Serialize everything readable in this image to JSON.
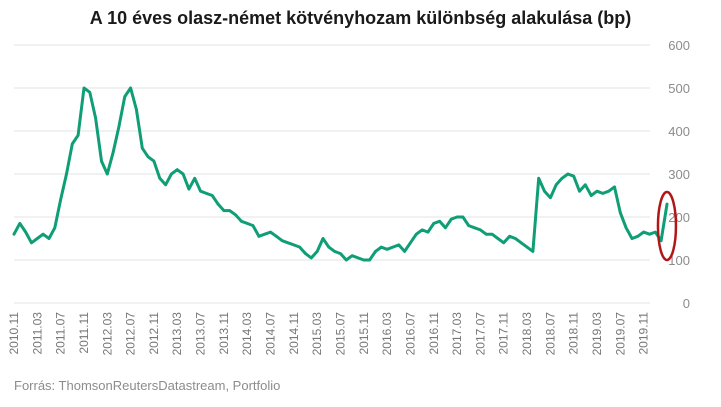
{
  "title": "A 10 éves olasz-német kötvényhozam különbség alakulása (bp)",
  "source": "Forrás: ThomsonReutersDatastream, Portfolio",
  "colors": {
    "series": "#0f9e76",
    "highlight": "#b01818",
    "grid": "#e3e3e3",
    "text": "#8c8c8c"
  },
  "chart_data": {
    "type": "line",
    "title": "A 10 éves olasz-német kötvényhozam különbség alakulása (bp)",
    "xlabel": "",
    "ylabel": "",
    "ylim": [
      0,
      600
    ],
    "y_ticks": [
      "0",
      "100",
      "200",
      "300",
      "400",
      "500",
      "600"
    ],
    "y_axis_position": "right",
    "grid": "horizontal",
    "x_ticks": [
      "2010.11",
      "2011.03",
      "2011.07",
      "2011.11",
      "2012.03",
      "2012.07",
      "2012.11",
      "2013.03",
      "2013.07",
      "2013.11",
      "2014.03",
      "2014.07",
      "2014.11",
      "2015.03",
      "2015.07",
      "2015.11",
      "2016.03",
      "2016.07",
      "2016.11",
      "2017.03",
      "2017.07",
      "2017.11",
      "2018.03",
      "2018.07",
      "2018.11",
      "2019.03",
      "2019.07",
      "2019.11"
    ],
    "series": [
      {
        "x": [
          "2010.11",
          "2010.12",
          "2011.01",
          "2011.02",
          "2011.03",
          "2011.04",
          "2011.05",
          "2011.06",
          "2011.07",
          "2011.08",
          "2011.09",
          "2011.10",
          "2011.11",
          "2011.12",
          "2012.01",
          "2012.02",
          "2012.03",
          "2012.04",
          "2012.05",
          "2012.06",
          "2012.07",
          "2012.08",
          "2012.09",
          "2012.10",
          "2012.11",
          "2012.12",
          "2013.01",
          "2013.02",
          "2013.03",
          "2013.04",
          "2013.05",
          "2013.06",
          "2013.07",
          "2013.08",
          "2013.09",
          "2013.10",
          "2013.11",
          "2013.12",
          "2014.01",
          "2014.02",
          "2014.03",
          "2014.04",
          "2014.05",
          "2014.06",
          "2014.07",
          "2014.08",
          "2014.09",
          "2014.10",
          "2014.11",
          "2014.12",
          "2015.01",
          "2015.02",
          "2015.03",
          "2015.04",
          "2015.05",
          "2015.06",
          "2015.07",
          "2015.08",
          "2015.09",
          "2015.10",
          "2015.11",
          "2015.12",
          "2016.01",
          "2016.02",
          "2016.03",
          "2016.04",
          "2016.05",
          "2016.06",
          "2016.07",
          "2016.08",
          "2016.09",
          "2016.10",
          "2016.11",
          "2016.12",
          "2017.01",
          "2017.02",
          "2017.03",
          "2017.04",
          "2017.05",
          "2017.06",
          "2017.07",
          "2017.08",
          "2017.09",
          "2017.10",
          "2017.11",
          "2017.12",
          "2018.01",
          "2018.02",
          "2018.03",
          "2018.04",
          "2018.05",
          "2018.06",
          "2018.07",
          "2018.08",
          "2018.09",
          "2018.10",
          "2018.11",
          "2018.12",
          "2019.01",
          "2019.02",
          "2019.03",
          "2019.04",
          "2019.05",
          "2019.06",
          "2019.07",
          "2019.08",
          "2019.09",
          "2019.10",
          "2019.11",
          "2019.12",
          "2020.01",
          "2020.02",
          "2020.03"
        ],
        "values": [
          160,
          185,
          165,
          140,
          150,
          160,
          150,
          175,
          240,
          300,
          370,
          390,
          500,
          490,
          430,
          330,
          300,
          350,
          410,
          480,
          500,
          450,
          360,
          340,
          330,
          290,
          275,
          300,
          310,
          300,
          265,
          290,
          260,
          255,
          250,
          230,
          215,
          215,
          205,
          190,
          185,
          180,
          155,
          160,
          165,
          155,
          145,
          140,
          135,
          130,
          115,
          105,
          120,
          150,
          130,
          120,
          115,
          100,
          110,
          105,
          100,
          100,
          120,
          130,
          125,
          130,
          135,
          120,
          140,
          160,
          170,
          165,
          185,
          190,
          175,
          195,
          200,
          200,
          180,
          175,
          170,
          160,
          160,
          150,
          140,
          155,
          150,
          140,
          130,
          120,
          290,
          260,
          245,
          275,
          290,
          300,
          295,
          260,
          275,
          250,
          260,
          255,
          260,
          270,
          210,
          175,
          150,
          155,
          165,
          160,
          165,
          145,
          230
        ]
      }
    ],
    "annotations": [
      "red ellipse highlighting the final spike (early 2020)"
    ]
  }
}
